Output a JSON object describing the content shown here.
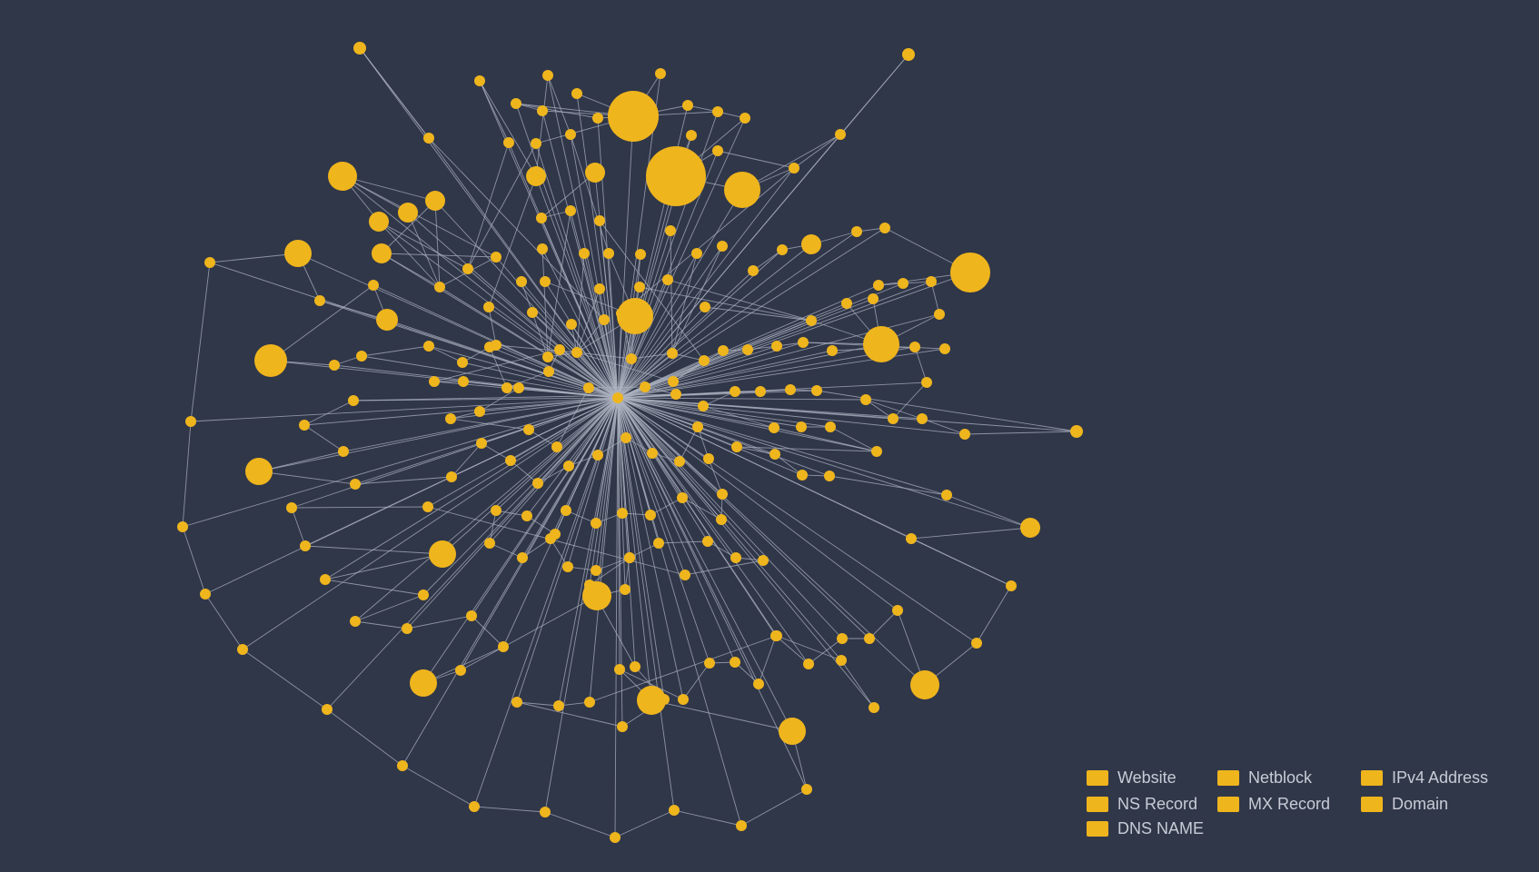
{
  "colors": {
    "background": "#303749",
    "node": "#efb51d",
    "edge": "#aeb3c0",
    "legend_text": "#c8ccd6"
  },
  "legend": {
    "items": [
      {
        "label": "Website",
        "color": "#efb51d"
      },
      {
        "label": "Netblock",
        "color": "#efb51d"
      },
      {
        "label": "IPv4 Address",
        "color": "#efb51d"
      },
      {
        "label": "NS Record",
        "color": "#efb51d"
      },
      {
        "label": "MX Record",
        "color": "#efb51d"
      },
      {
        "label": "Domain",
        "color": "#efb51d"
      },
      {
        "label": "DNS NAME",
        "color": "#efb51d"
      }
    ]
  },
  "graph": {
    "type": "radial network graph",
    "node_count_visible": 240
  }
}
